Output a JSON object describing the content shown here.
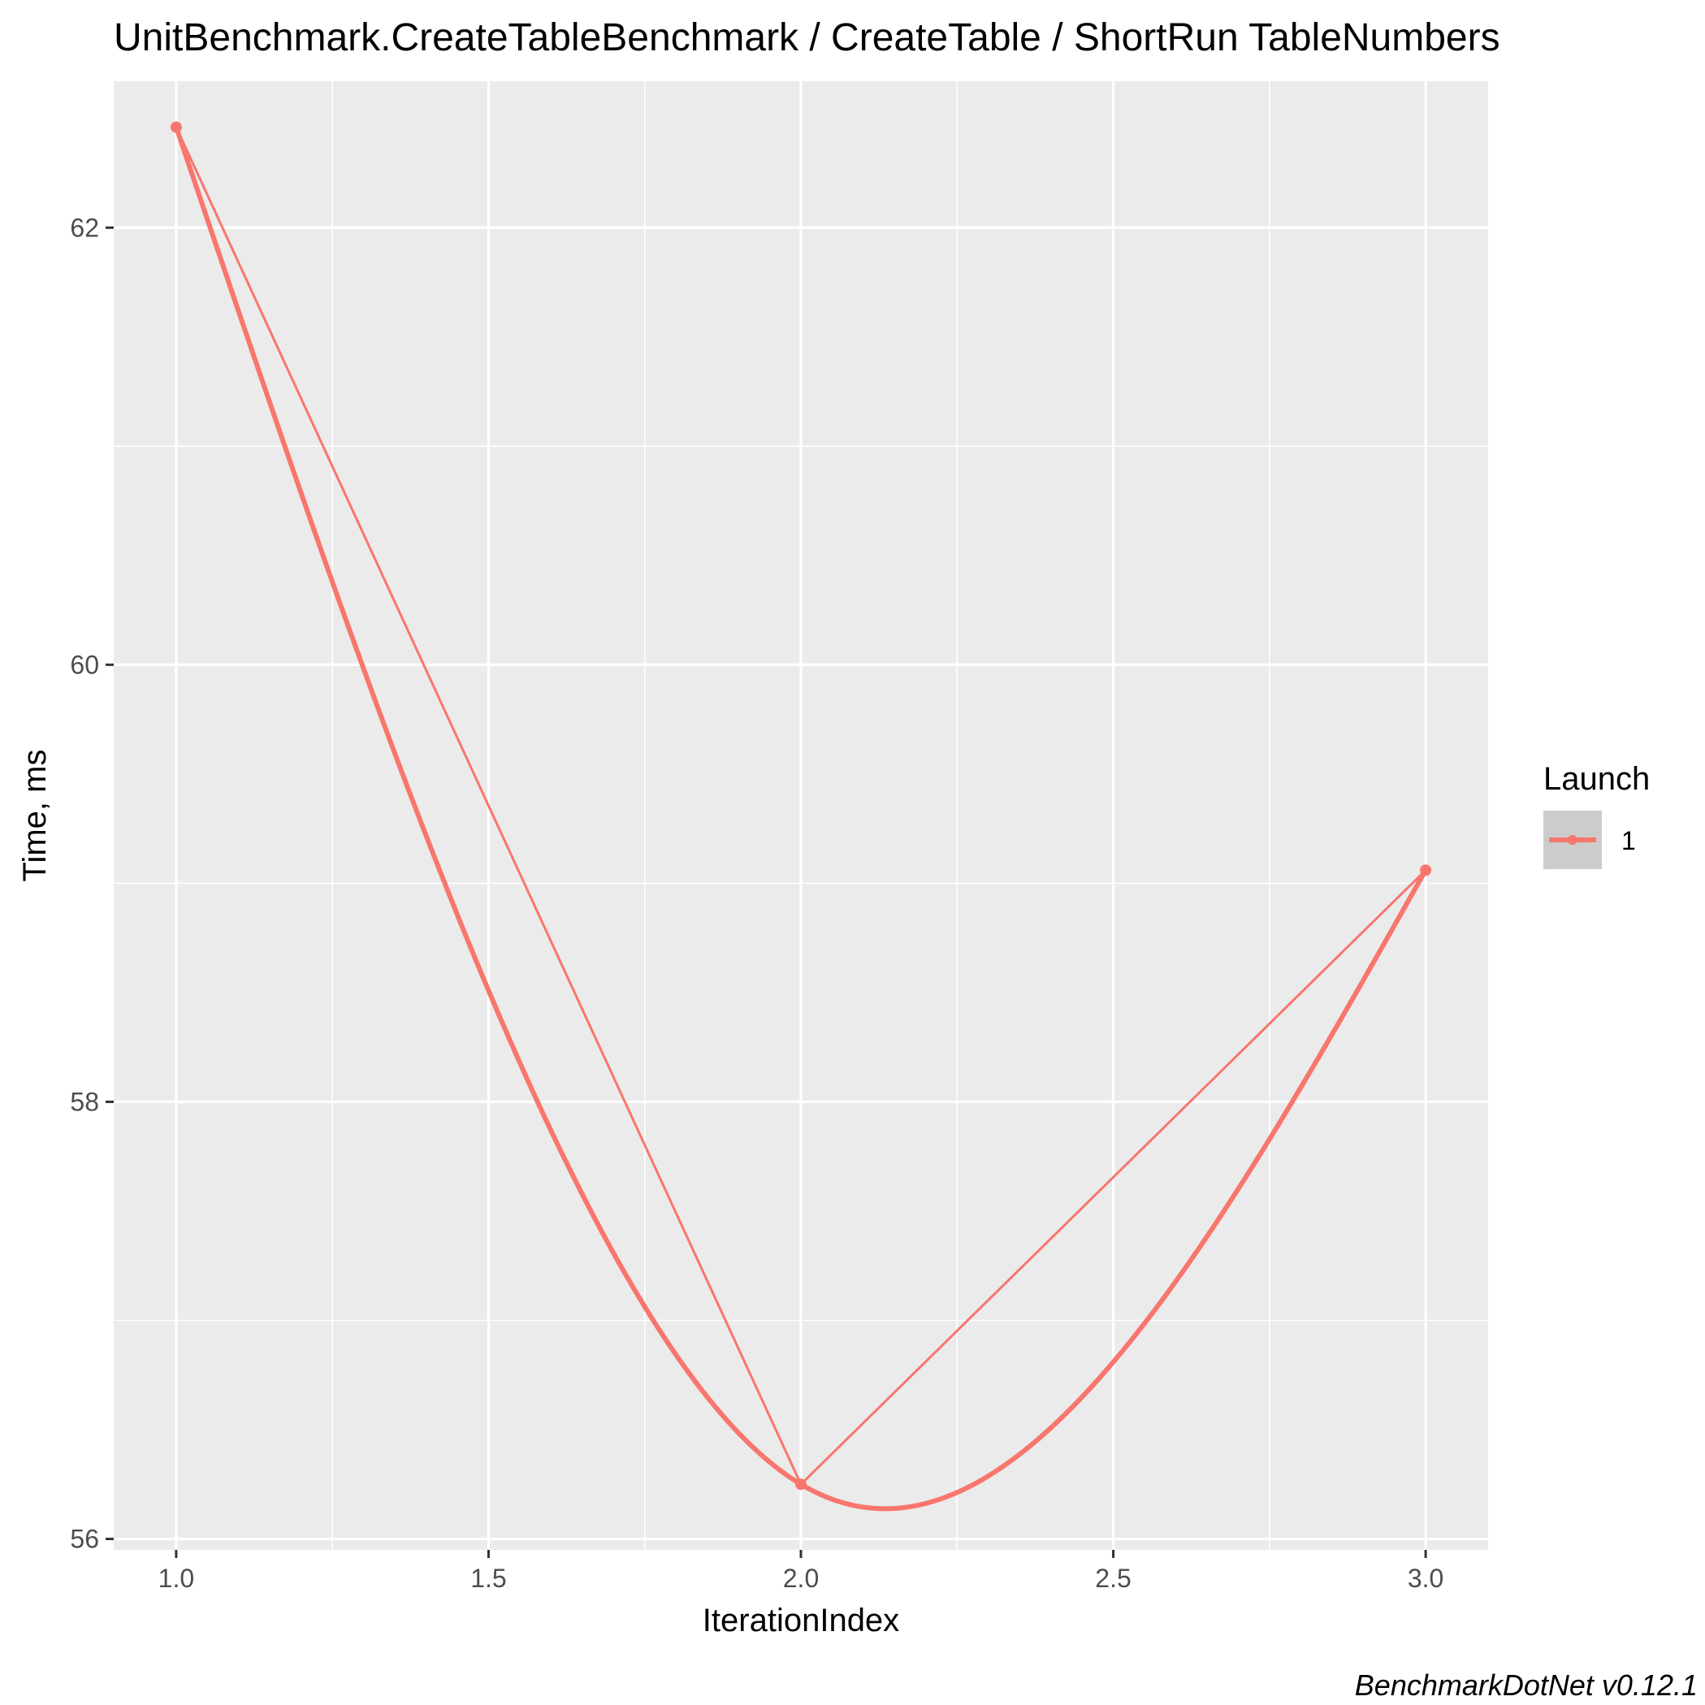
{
  "chart_data": {
    "type": "line",
    "title": "UnitBenchmark.CreateTableBenchmark / CreateTable / ShortRun TableNumbers",
    "xlabel": "IterationIndex",
    "ylabel": "Time, ms",
    "xlim": [
      0.9,
      3.1
    ],
    "ylim": [
      55.95,
      62.67
    ],
    "x_ticks": [
      1.0,
      1.5,
      2.0,
      2.5,
      3.0
    ],
    "x_tick_labels": [
      "1.0",
      "1.5",
      "2.0",
      "2.5",
      "3.0"
    ],
    "y_ticks": [
      56,
      58,
      60,
      62
    ],
    "y_tick_labels": [
      "56",
      "58",
      "60",
      "62"
    ],
    "grid": true,
    "legend": {
      "title": "Launch",
      "placement": "right",
      "entries": [
        "1"
      ]
    },
    "series": [
      {
        "name": "1",
        "color": "#f8766d",
        "x": [
          1,
          2,
          3
        ],
        "y": [
          62.46,
          56.25,
          59.06
        ],
        "smoothed": true
      }
    ],
    "caption": "BenchmarkDotNet v0.12.1"
  }
}
